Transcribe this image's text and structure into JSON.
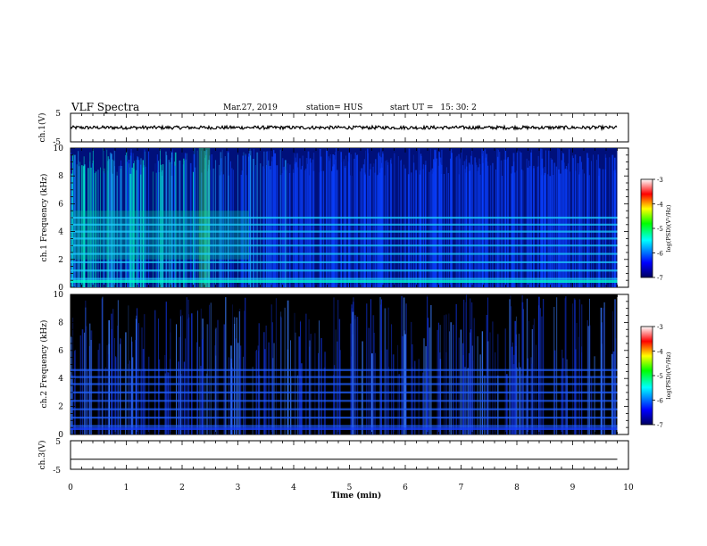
{
  "header": {
    "title": "VLF Spectra",
    "date": "Mar.27, 2019",
    "station": "station= HUS",
    "start_ut_label": "start  UT  =",
    "start_ut_value": "15: 30: 2"
  },
  "colors": {
    "spectrogram_background": "#000000",
    "colormap": [
      "#00004a",
      "#0000ff",
      "#00ffff",
      "#00ff00",
      "#ffff00",
      "#ff0000",
      "#ffffff"
    ],
    "trace": "#000000"
  },
  "chart_data": [
    {
      "type": "line",
      "name": "ch1-waveform",
      "ylabel": "ch.1(V)",
      "ylim": [
        -5,
        5
      ],
      "yticks": [
        "5",
        "-5"
      ],
      "x_range_min": [
        0,
        9.8
      ],
      "description_values": {
        "mean_level_V": 0.0,
        "amplitude_V": 0.6
      },
      "grid": false
    },
    {
      "type": "heatmap",
      "name": "ch1-spectrogram",
      "xlabel": "Time (min)",
      "ylabel": "ch.1 Frequency (kHz)",
      "ylim": [
        0,
        10
      ],
      "yticks": [
        "0",
        "2",
        "4",
        "6",
        "8",
        "10"
      ],
      "xlim": [
        0,
        10
      ],
      "data_extent_x_min": 9.8,
      "colorbar": {
        "label": "log(PSD)(V²/Hz)",
        "range": [
          -7,
          -3
        ],
        "ticks": [
          "-3",
          "-4",
          "-5",
          "-6",
          "-7"
        ]
      },
      "intensity_note": "strong broadband activity 0-3 min (peak near 2.4 min), horizontal bands near 0.5, 1, 1.5, 2, 2.5, 3, 3.5, 4, 4.5, 5 kHz"
    },
    {
      "type": "heatmap",
      "name": "ch2-spectrogram",
      "xlabel": "Time (min)",
      "ylabel": "ch.2 Frequency (kHz)",
      "ylim": [
        0,
        10
      ],
      "yticks": [
        "0",
        "2",
        "4",
        "6",
        "8",
        "10"
      ],
      "xlim": [
        0,
        10
      ],
      "data_extent_x_min": 9.8,
      "colorbar": {
        "label": "log(PSD)(V²/Hz)",
        "range": [
          -7,
          -3
        ],
        "ticks": [
          "-3",
          "-4",
          "-5",
          "-6",
          "-7"
        ]
      },
      "intensity_note": "weaker emissions, horizontal bands near 0.5, 1, 1.5, 2, 2.5, 3, 3.5, 4, 4.5 kHz, faint vertical sferics"
    },
    {
      "type": "line",
      "name": "ch3-waveform",
      "ylabel": "ch.3(V)",
      "ylim": [
        -5,
        5
      ],
      "yticks": [
        "5",
        "-5"
      ],
      "values_V": {
        "level": -1.5
      },
      "xlabel": "Time (min)",
      "xticks": [
        "0",
        "1",
        "2",
        "3",
        "4",
        "5",
        "6",
        "7",
        "8",
        "9",
        "10"
      ],
      "xlim": [
        0,
        10
      ]
    }
  ]
}
